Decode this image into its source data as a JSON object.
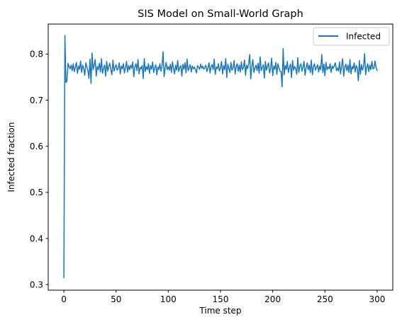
{
  "chart_data": {
    "type": "line",
    "title": "SIS Model on Small-World Graph",
    "xlabel": "Time step",
    "ylabel": "Infected fraction",
    "xlim": [
      -15,
      315
    ],
    "ylim": [
      0.288,
      0.865
    ],
    "xticks": [
      0,
      50,
      100,
      150,
      200,
      250,
      300
    ],
    "yticks": [
      0.3,
      0.4,
      0.5,
      0.6,
      0.7,
      0.8
    ],
    "grid": false,
    "legend_position": "top-right",
    "series": [
      {
        "name": "Infected",
        "color": "#1f77b4",
        "x_start": 0,
        "x_step": 1,
        "values": [
          0.315,
          0.84,
          0.738,
          0.742,
          0.78,
          0.772,
          0.768,
          0.776,
          0.764,
          0.779,
          0.762,
          0.771,
          0.782,
          0.758,
          0.774,
          0.767,
          0.785,
          0.76,
          0.776,
          0.769,
          0.754,
          0.781,
          0.772,
          0.764,
          0.747,
          0.789,
          0.736,
          0.802,
          0.766,
          0.776,
          0.788,
          0.752,
          0.773,
          0.766,
          0.78,
          0.761,
          0.79,
          0.758,
          0.769,
          0.776,
          0.752,
          0.784,
          0.763,
          0.772,
          0.78,
          0.766,
          0.755,
          0.787,
          0.763,
          0.771,
          0.777,
          0.765,
          0.769,
          0.781,
          0.757,
          0.774,
          0.768,
          0.779,
          0.759,
          0.77,
          0.784,
          0.761,
          0.775,
          0.766,
          0.776,
          0.769,
          0.783,
          0.751,
          0.772,
          0.779,
          0.764,
          0.788,
          0.757,
          0.771,
          0.768,
          0.775,
          0.747,
          0.79,
          0.762,
          0.773,
          0.766,
          0.779,
          0.758,
          0.775,
          0.767,
          0.783,
          0.76,
          0.77,
          0.777,
          0.755,
          0.772,
          0.766,
          0.779,
          0.763,
          0.774,
          0.805,
          0.751,
          0.77,
          0.782,
          0.766,
          0.773,
          0.765,
          0.778,
          0.76,
          0.783,
          0.769,
          0.757,
          0.776,
          0.765,
          0.786,
          0.762,
          0.771,
          0.775,
          0.752,
          0.778,
          0.767,
          0.781,
          0.759,
          0.789,
          0.764,
          0.77,
          0.777,
          0.761,
          0.774,
          0.768,
          0.772,
          0.766,
          0.759,
          0.775,
          0.771,
          0.767,
          0.778,
          0.769,
          0.774,
          0.767,
          0.771,
          0.776,
          0.762,
          0.77,
          0.781,
          0.759,
          0.773,
          0.777,
          0.766,
          0.789,
          0.756,
          0.772,
          0.768,
          0.779,
          0.763,
          0.77,
          0.784,
          0.757,
          0.775,
          0.766,
          0.79,
          0.749,
          0.778,
          0.769,
          0.76,
          0.782,
          0.765,
          0.77,
          0.786,
          0.757,
          0.772,
          0.779,
          0.763,
          0.776,
          0.761,
          0.783,
          0.766,
          0.771,
          0.787,
          0.754,
          0.776,
          0.768,
          0.78,
          0.799,
          0.746,
          0.773,
          0.788,
          0.76,
          0.77,
          0.776,
          0.764,
          0.78,
          0.758,
          0.794,
          0.764,
          0.771,
          0.777,
          0.748,
          0.784,
          0.765,
          0.773,
          0.781,
          0.759,
          0.769,
          0.791,
          0.753,
          0.774,
          0.767,
          0.782,
          0.756,
          0.779,
          0.77,
          0.763,
          0.762,
          0.729,
          0.812,
          0.755,
          0.775,
          0.767,
          0.784,
          0.76,
          0.771,
          0.778,
          0.749,
          0.786,
          0.765,
          0.773,
          0.768,
          0.756,
          0.792,
          0.76,
          0.774,
          0.779,
          0.763,
          0.771,
          0.784,
          0.754,
          0.77,
          0.781,
          0.766,
          0.776,
          0.76,
          0.787,
          0.755,
          0.772,
          0.779,
          0.765,
          0.771,
          0.777,
          0.761,
          0.774,
          0.766,
          0.799,
          0.76,
          0.778,
          0.753,
          0.782,
          0.766,
          0.772,
          0.768,
          0.779,
          0.76,
          0.774,
          0.769,
          0.775,
          0.781,
          0.764,
          0.77,
          0.763,
          0.783,
          0.757,
          0.774,
          0.79,
          0.752,
          0.771,
          0.778,
          0.764,
          0.776,
          0.76,
          0.788,
          0.757,
          0.773,
          0.768,
          0.781,
          0.761,
          0.775,
          0.769,
          0.742,
          0.786,
          0.756,
          0.777,
          0.765,
          0.773,
          0.801,
          0.755,
          0.771,
          0.779,
          0.762,
          0.776,
          0.766,
          0.784,
          0.768,
          0.769,
          0.785,
          0.771,
          0.764
        ]
      }
    ]
  }
}
